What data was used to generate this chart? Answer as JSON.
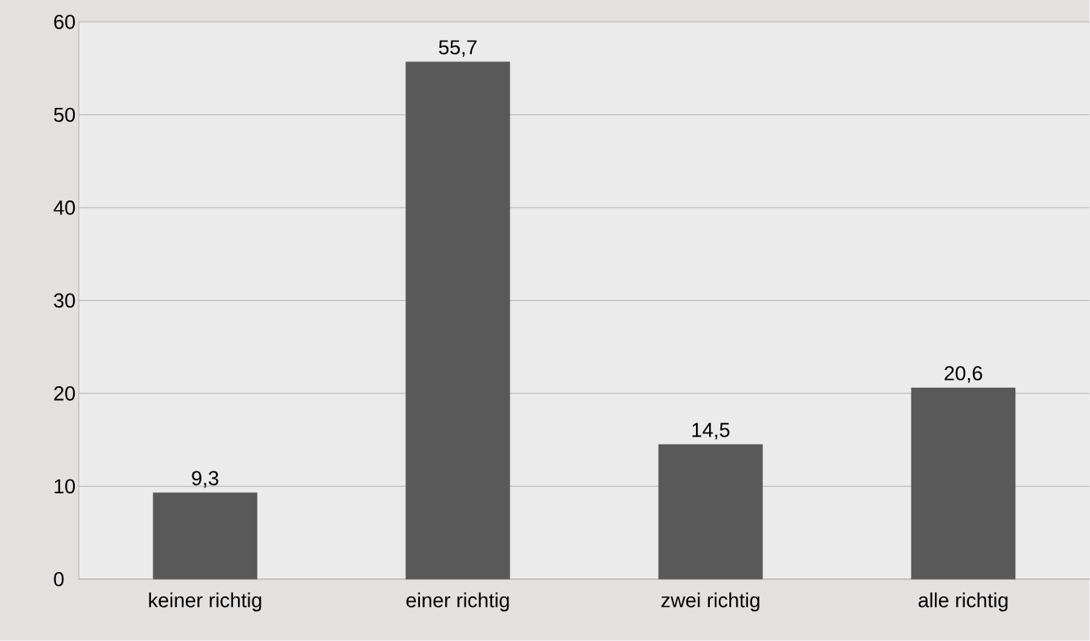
{
  "chart_data": {
    "type": "bar",
    "categories": [
      "keiner richtig",
      "einer richtig",
      "zwei richtig",
      "alle richtig"
    ],
    "values": [
      9.3,
      55.7,
      14.5,
      20.6
    ],
    "value_labels": [
      "9,3",
      "55,7",
      "14,5",
      "20,6"
    ],
    "color": "#595959",
    "ylim": [
      0,
      60
    ],
    "yticks": [
      0,
      10,
      20,
      30,
      40,
      50,
      60
    ],
    "grid": "y"
  }
}
